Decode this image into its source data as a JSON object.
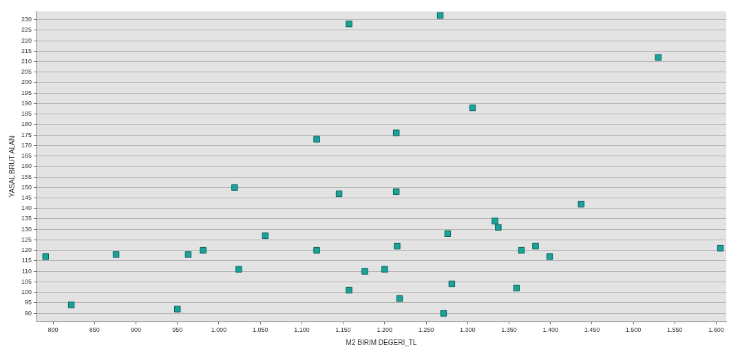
{
  "chart_data": {
    "type": "scatter",
    "xlabel": "M2 BIRIM DEGERI_TL",
    "ylabel": "YASAL BRUT ALAN",
    "x": [
      791,
      822,
      876,
      963,
      981,
      950,
      1024,
      1019,
      1056,
      1118,
      1118,
      1157,
      1145,
      1157,
      1176,
      1200,
      1214,
      1214,
      1215,
      1218,
      1267,
      1276,
      1281,
      1271,
      1306,
      1333,
      1337,
      1359,
      1365,
      1382,
      1399,
      1437,
      1530,
      1605
    ],
    "values": [
      117,
      94,
      118,
      118,
      120,
      92,
      111,
      150,
      127,
      120,
      173,
      228,
      147,
      101,
      110,
      111,
      176,
      148,
      122,
      97,
      232,
      128,
      104,
      90,
      188,
      134,
      131,
      102,
      120,
      122,
      117,
      142,
      212,
      121
    ],
    "color": "#1aa39a",
    "marker": "square",
    "grid": "y",
    "xlim": [
      780,
      1612
    ],
    "ylim": [
      86,
      234
    ],
    "xticks": [
      800,
      850,
      900,
      950,
      {
        "value": 1000,
        "label": "1.000"
      },
      {
        "value": 1050,
        "label": "1.050"
      },
      {
        "value": 1100,
        "label": "1.100"
      },
      {
        "value": 1150,
        "label": "1.150"
      },
      {
        "value": 1200,
        "label": "1.200"
      },
      {
        "value": 1250,
        "label": "1.250"
      },
      {
        "value": 1300,
        "label": "1.300"
      },
      {
        "value": 1350,
        "label": "1.350"
      },
      {
        "value": 1400,
        "label": "1.400"
      },
      {
        "value": 1450,
        "label": "1.450"
      },
      {
        "value": 1500,
        "label": "1.500"
      },
      {
        "value": 1550,
        "label": "1.550"
      },
      {
        "value": 1600,
        "label": "1.600"
      }
    ],
    "yticks": [
      90,
      95,
      100,
      105,
      110,
      115,
      120,
      125,
      130,
      135,
      140,
      145,
      150,
      155,
      160,
      165,
      170,
      175,
      180,
      185,
      190,
      195,
      200,
      205,
      210,
      215,
      220,
      225,
      230
    ]
  }
}
